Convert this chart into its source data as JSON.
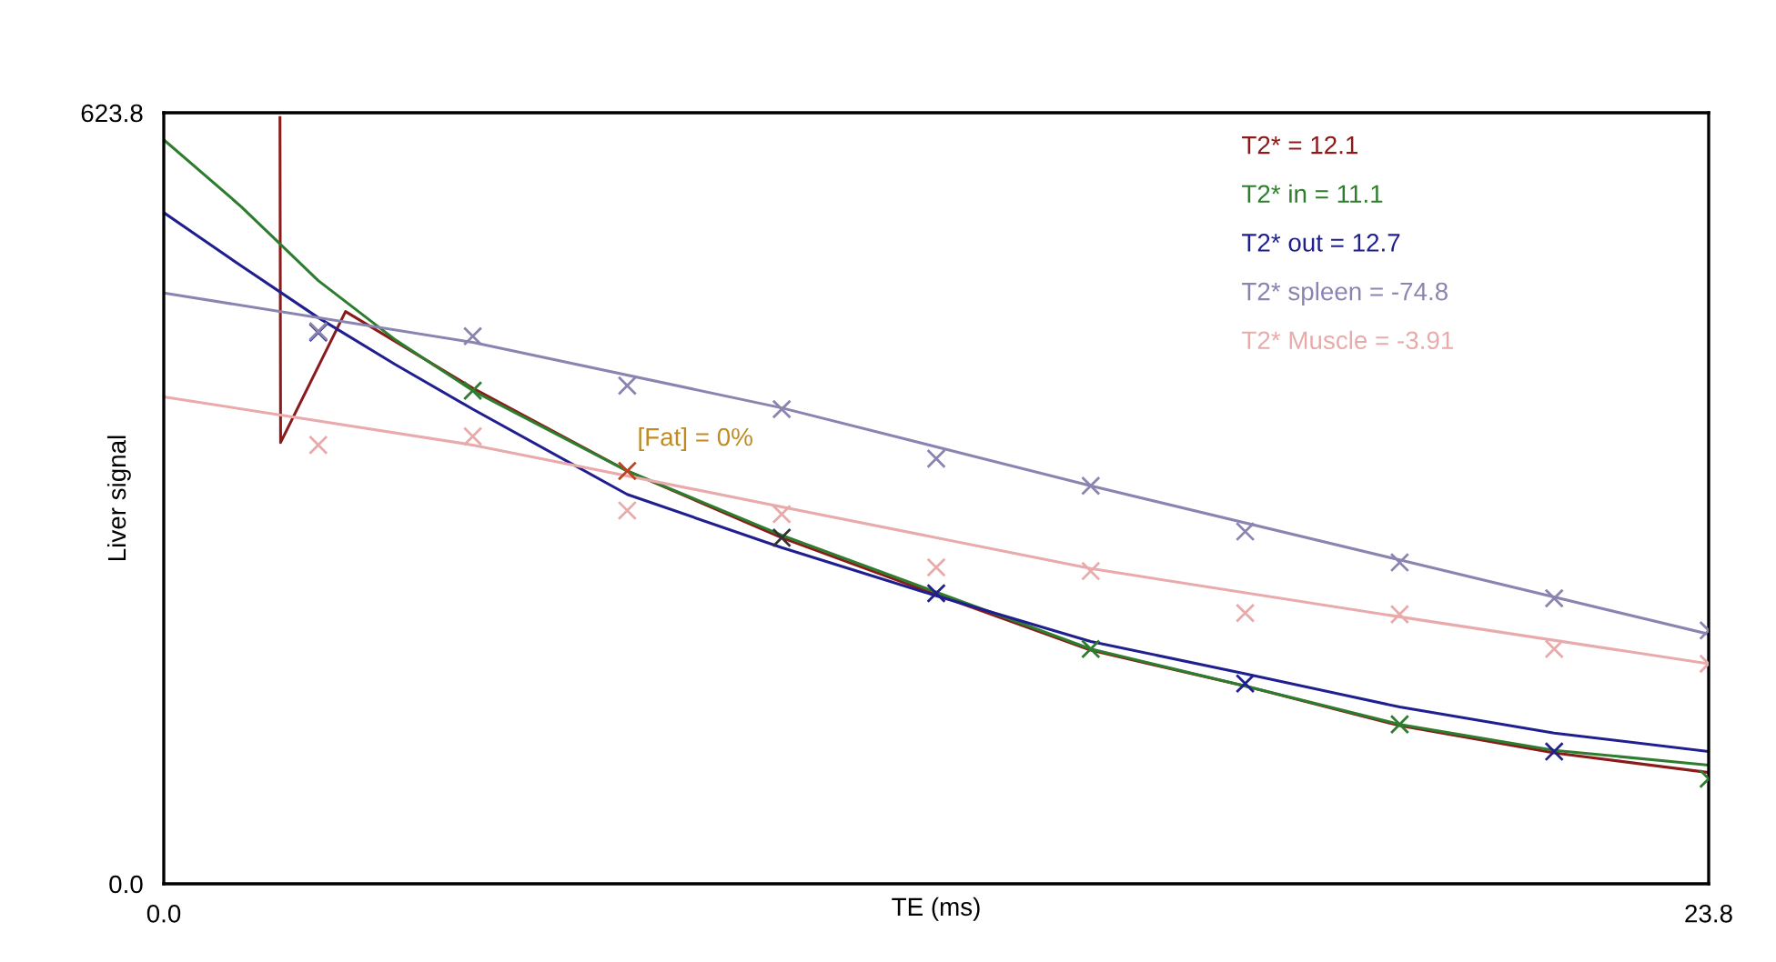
{
  "chart_data": {
    "type": "line",
    "xlabel": "TE (ms)",
    "ylabel": "Liver signal",
    "xlim": [
      0,
      23.8
    ],
    "ylim": [
      0,
      623.8
    ],
    "xticks": [
      {
        "value": 0,
        "label": "0.0"
      },
      {
        "value": 23.8,
        "label": "23.8"
      }
    ],
    "yticks": [
      {
        "value": 0,
        "label": "0.0"
      },
      {
        "value": 623.8,
        "label": "623.8"
      }
    ],
    "legend": "top right",
    "line_style": "solid",
    "annotations": [
      {
        "text": "[Fat] = 0%",
        "x": 7.14,
        "y": 334
      }
    ],
    "series": [
      {
        "name": "T2* = 12.1",
        "color": "#8b1a1a",
        "marker": "none",
        "x": [
          1.79,
          1.8,
          2.8,
          4.76,
          7.14,
          9.52,
          11.9,
          14.28,
          16.66,
          19.04,
          21.42,
          23.8
        ],
        "values": [
          620,
          357,
          463,
          401,
          334,
          280,
          234,
          189,
          160,
          128,
          106,
          90
        ]
      },
      {
        "name": "T2* in = 11.1",
        "color": "#2e7d2e",
        "marker": "none",
        "x": [
          0,
          1.19,
          2.38,
          3.57,
          4.76,
          7.14,
          9.52,
          11.9,
          14.28,
          16.66,
          19.04,
          21.42,
          23.8
        ],
        "values": [
          602,
          548,
          488,
          440,
          399,
          334,
          282,
          236,
          190,
          160,
          129,
          108,
          96
        ]
      },
      {
        "name": "T2* out = 12.7",
        "color": "#1f1f8f",
        "marker": "none",
        "x": [
          0,
          1.19,
          2.38,
          3.57,
          4.76,
          7.14,
          9.52,
          11.9,
          14.28,
          16.66,
          19.04,
          21.42,
          23.8
        ],
        "values": [
          543,
          500,
          458,
          420,
          384,
          315,
          272,
          233,
          196,
          170,
          143,
          122,
          107
        ]
      },
      {
        "name": "T2* spleen = -74.8",
        "color": "#8a84b0",
        "marker": "none",
        "x": [
          0,
          4.76,
          9.52,
          14.28,
          19.04,
          23.8
        ],
        "values": [
          478,
          438,
          385,
          322,
          262,
          202
        ]
      },
      {
        "name": "T2* Muscle = -3.91",
        "color": "#e8aaaa",
        "marker": "none",
        "x": [
          0,
          4.76,
          9.52,
          14.28,
          19.04,
          23.8
        ],
        "values": [
          394,
          355,
          305,
          255,
          216,
          178
        ]
      },
      {
        "type": "scatter",
        "marker": "cross",
        "colors": [
          "#3333a0",
          "#2e7d2e",
          "#c04020",
          "#333333",
          "#1f1f8f",
          "#2e7d2e",
          "#1f1f8f",
          "#2e7d2e",
          "#1f1f8f",
          "#2e7d2e"
        ],
        "x": [
          2.38,
          4.76,
          7.14,
          9.52,
          11.9,
          14.28,
          16.66,
          19.04,
          21.42,
          23.8
        ],
        "values": [
          446,
          399,
          334,
          280,
          235,
          190,
          162,
          129,
          107,
          85
        ]
      },
      {
        "type": "scatter",
        "marker": "cross",
        "color": "#8a84b0",
        "x": [
          2.38,
          4.76,
          7.14,
          9.52,
          11.9,
          14.28,
          16.66,
          19.04,
          21.42,
          23.8
        ],
        "values": [
          447,
          443,
          403,
          384,
          344,
          322,
          285,
          260,
          231,
          205
        ]
      },
      {
        "type": "scatter",
        "marker": "cross",
        "color": "#e8aaaa",
        "x": [
          2.38,
          4.76,
          7.14,
          9.52,
          11.9,
          14.28,
          16.66,
          19.04,
          21.42,
          23.8
        ],
        "values": [
          355,
          362,
          302,
          299,
          256,
          253,
          219,
          218,
          190,
          178
        ]
      }
    ]
  }
}
